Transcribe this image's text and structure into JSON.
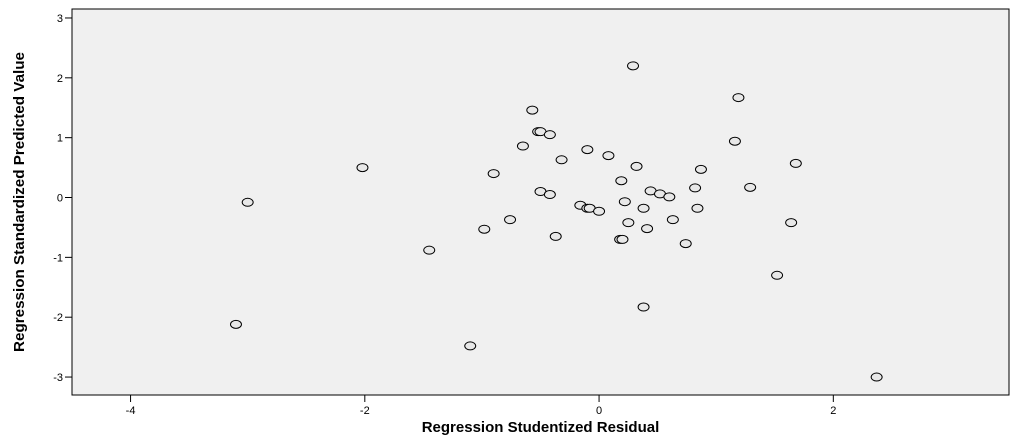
{
  "chart_data": {
    "type": "scatter",
    "xlabel": "Regression Studentized Residual",
    "ylabel": "Regression Standardized Predicted Value",
    "xlim": [
      -4.5,
      3.5
    ],
    "ylim": [
      -3.3,
      3.15
    ],
    "xticks": [
      -4,
      -2,
      0,
      2
    ],
    "yticks": [
      -3,
      -2,
      -1,
      0,
      1,
      2,
      3
    ],
    "grid": false,
    "legend": "none",
    "plot_bg": "#f0f0f0",
    "points": [
      {
        "x": -3.1,
        "y": -2.12
      },
      {
        "x": -3.0,
        "y": -0.08
      },
      {
        "x": -2.02,
        "y": 0.5
      },
      {
        "x": -1.45,
        "y": -0.88
      },
      {
        "x": -1.1,
        "y": -2.48
      },
      {
        "x": -0.98,
        "y": -0.53
      },
      {
        "x": -0.9,
        "y": 0.4
      },
      {
        "x": -0.76,
        "y": -0.37
      },
      {
        "x": -0.65,
        "y": 0.86
      },
      {
        "x": -0.57,
        "y": 1.46
      },
      {
        "x": -0.52,
        "y": 1.1
      },
      {
        "x": -0.5,
        "y": 1.1
      },
      {
        "x": -0.42,
        "y": 1.05
      },
      {
        "x": -0.5,
        "y": 0.1
      },
      {
        "x": -0.42,
        "y": 0.05
      },
      {
        "x": -0.37,
        "y": -0.65
      },
      {
        "x": -0.32,
        "y": 0.63
      },
      {
        "x": -0.16,
        "y": -0.13
      },
      {
        "x": -0.1,
        "y": -0.18
      },
      {
        "x": -0.08,
        "y": -0.18
      },
      {
        "x": -0.1,
        "y": 0.8
      },
      {
        "x": 0.0,
        "y": -0.23
      },
      {
        "x": 0.08,
        "y": 0.7
      },
      {
        "x": 0.19,
        "y": 0.28
      },
      {
        "x": 0.18,
        "y": -0.7
      },
      {
        "x": 0.2,
        "y": -0.7
      },
      {
        "x": 0.22,
        "y": -0.07
      },
      {
        "x": 0.25,
        "y": -0.42
      },
      {
        "x": 0.29,
        "y": 2.2
      },
      {
        "x": 0.32,
        "y": 0.52
      },
      {
        "x": 0.38,
        "y": -0.18
      },
      {
        "x": 0.38,
        "y": -1.83
      },
      {
        "x": 0.41,
        "y": -0.52
      },
      {
        "x": 0.44,
        "y": 0.11
      },
      {
        "x": 0.52,
        "y": 0.06
      },
      {
        "x": 0.6,
        "y": 0.01
      },
      {
        "x": 0.63,
        "y": -0.37
      },
      {
        "x": 0.74,
        "y": -0.77
      },
      {
        "x": 0.82,
        "y": 0.16
      },
      {
        "x": 0.84,
        "y": -0.18
      },
      {
        "x": 0.87,
        "y": 0.47
      },
      {
        "x": 1.16,
        "y": 0.94
      },
      {
        "x": 1.19,
        "y": 1.67
      },
      {
        "x": 1.29,
        "y": 0.17
      },
      {
        "x": 1.52,
        "y": -1.3
      },
      {
        "x": 1.64,
        "y": -0.42
      },
      {
        "x": 1.68,
        "y": 0.57
      },
      {
        "x": 2.37,
        "y": -3.0
      }
    ]
  }
}
